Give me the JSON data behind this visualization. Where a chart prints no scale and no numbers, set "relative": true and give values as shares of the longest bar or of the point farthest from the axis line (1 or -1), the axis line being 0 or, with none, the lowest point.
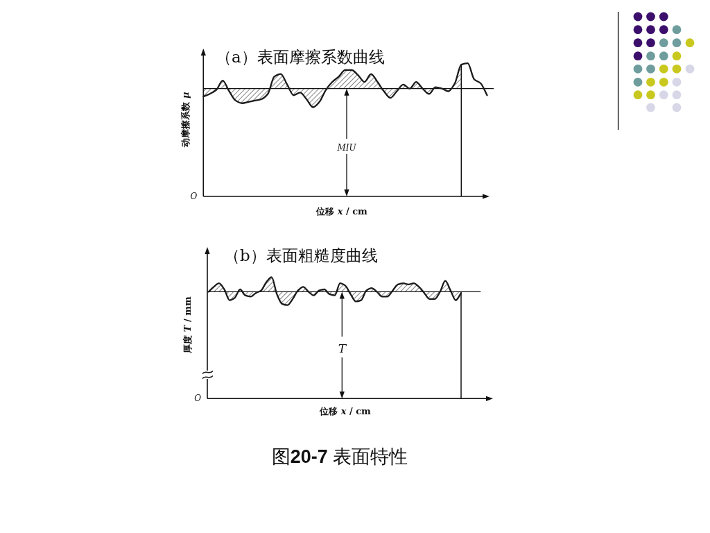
{
  "chart_data": [
    {
      "type": "line",
      "title": "（a）表面摩擦系数曲线",
      "xlabel": "位移 *x* / cm",
      "ylabel": "动摩擦系数 *μ*",
      "relative": true,
      "categories": [
        null,
        null,
        null,
        null,
        null,
        null,
        null,
        null,
        null,
        null,
        null,
        null,
        null,
        null,
        null,
        null,
        null,
        null,
        null,
        null,
        null,
        null,
        null,
        null,
        null,
        null,
        null,
        null,
        null,
        null,
        null,
        null,
        null,
        null,
        null,
        null,
        null,
        null,
        null,
        null,
        null,
        null,
        null,
        null,
        null
      ],
      "series": [
        {
          "color": "#1a1a1a",
          "values": [
            0.75,
            0.77,
            0.8,
            0.87,
            0.79,
            0.72,
            0.7,
            0.71,
            0.72,
            0.73,
            0.77,
            0.9,
            0.92,
            0.84,
            0.76,
            0.78,
            0.73,
            0.67,
            0.71,
            0.8,
            0.86,
            0.9,
            0.95,
            0.95,
            0.91,
            0.86,
            0.92,
            0.86,
            0.79,
            0.74,
            0.79,
            0.84,
            0.81,
            0.86,
            0.81,
            0.77,
            0.82,
            0.81,
            0.79,
            0.85,
            0.99,
            1.0,
            0.88,
            0.85,
            0.76
          ],
          "lower": [
            0.75,
            0.77,
            0.8,
            0.81,
            0.79,
            0.72,
            0.7,
            0.71,
            0.72,
            0.73,
            0.77,
            0.81,
            0.81,
            0.81,
            0.76,
            0.78,
            0.73,
            0.67,
            0.71,
            0.8,
            0.81,
            0.81,
            0.81,
            0.81,
            0.81,
            0.81,
            0.81,
            0.81,
            0.79,
            0.74,
            0.79,
            0.81,
            0.81,
            0.81,
            0.81,
            0.77,
            0.81,
            0.81,
            0.79,
            0.81,
            0.81,
            null,
            null,
            null,
            null
          ],
          "upper": [
            0.81,
            0.81,
            0.81,
            0.87,
            0.81,
            0.81,
            0.81,
            0.81,
            0.81,
            0.81,
            0.81,
            0.9,
            0.92,
            0.84,
            0.81,
            0.81,
            0.81,
            0.81,
            0.81,
            0.81,
            0.86,
            0.9,
            0.95,
            0.95,
            0.91,
            0.86,
            0.92,
            0.86,
            0.81,
            0.81,
            0.81,
            0.84,
            0.81,
            0.86,
            0.81,
            0.81,
            0.82,
            0.81,
            0.81,
            0.85,
            0.99,
            null,
            null,
            null,
            null
          ]
        }
      ],
      "ref_lines": [
        {
          "axis": "y",
          "value": 0.81,
          "label": "MIU"
        }
      ],
      "annotations": [
        "O"
      ]
    },
    {
      "type": "line",
      "title": "（b）表面粗糙度曲线",
      "xlabel": "位移 *x* / cm",
      "ylabel": "厚度 *T* / mm",
      "relative": true,
      "categories": [
        null,
        null,
        null,
        null,
        null,
        null,
        null,
        null,
        null,
        null,
        null,
        null,
        null,
        null,
        null,
        null,
        null,
        null,
        null,
        null,
        null,
        null,
        null,
        null,
        null,
        null,
        null,
        null,
        null,
        null,
        null,
        null,
        null,
        null,
        null,
        null,
        null,
        null,
        null,
        null,
        null,
        null,
        null,
        null,
        null,
        null,
        null,
        null,
        null
      ],
      "series": [
        {
          "color": "#1a1a1a",
          "values": [
            0.88,
            0.92,
            0.95,
            0.9,
            0.81,
            0.83,
            0.9,
            0.85,
            0.84,
            0.87,
            0.89,
            0.96,
            1.0,
            0.86,
            0.78,
            0.77,
            0.82,
            0.89,
            0.92,
            0.88,
            0.85,
            0.89,
            0.9,
            0.86,
            0.85,
            0.95,
            0.93,
            0.86,
            0.8,
            0.81,
            0.89,
            0.91,
            0.88,
            0.84,
            0.84,
            0.89,
            0.94,
            0.95,
            0.94,
            0.95,
            0.92,
            0.87,
            0.82,
            0.82,
            0.88,
            0.97,
            0.89,
            0.81,
            0.87
          ],
          "lower": [
            0.88,
            0.88,
            0.88,
            0.88,
            0.81,
            0.83,
            0.88,
            0.85,
            0.84,
            0.87,
            0.88,
            0.88,
            0.88,
            0.86,
            0.78,
            0.77,
            0.82,
            0.88,
            0.88,
            0.88,
            0.85,
            0.88,
            0.88,
            0.86,
            0.85,
            0.88,
            0.88,
            0.86,
            0.8,
            0.81,
            0.88,
            0.88,
            0.88,
            0.84,
            0.84,
            0.88,
            0.88,
            0.88,
            0.88,
            0.88,
            0.88,
            0.87,
            0.82,
            0.82,
            0.88,
            0.88,
            0.88,
            0.81,
            0.87
          ],
          "upper": [
            0.88,
            0.92,
            0.95,
            0.9,
            0.88,
            0.88,
            0.9,
            0.88,
            0.88,
            0.88,
            0.89,
            0.96,
            1.0,
            0.88,
            0.88,
            0.88,
            0.88,
            0.89,
            0.92,
            0.88,
            0.88,
            0.89,
            0.9,
            0.88,
            0.88,
            0.95,
            0.93,
            0.88,
            0.88,
            0.88,
            0.89,
            0.91,
            0.88,
            0.88,
            0.88,
            0.89,
            0.94,
            0.95,
            0.94,
            0.95,
            0.92,
            0.88,
            0.88,
            0.88,
            0.88,
            0.97,
            0.89,
            0.88,
            0.88
          ]
        }
      ],
      "ref_lines": [
        {
          "axis": "y",
          "value": 0.88,
          "label": "T"
        }
      ],
      "annotations": [
        "O",
        "图**20-7** 表面特性"
      ]
    }
  ]
}
